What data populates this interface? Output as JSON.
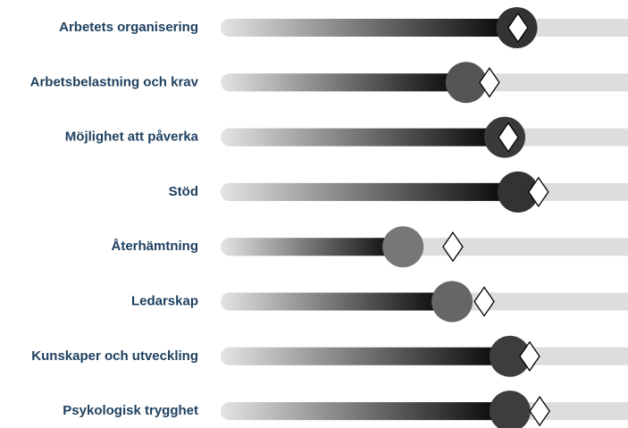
{
  "chart_data": {
    "type": "slider",
    "categories": [
      "Arbetets organisering",
      "Arbetsbelastning och krav",
      "Möjlighet att påverka",
      "Stöd",
      "Återhämtning",
      "Ledarskap",
      "Kunskaper och utveckling",
      "Psykologisk trygghet"
    ],
    "values": [
      73,
      60.4,
      70,
      73.3,
      44.7,
      56.9,
      71.3,
      71.3
    ],
    "reference_values": [
      73.3,
      66.2,
      70.9,
      78.4,
      57.1,
      64.9,
      76.2,
      78.7
    ],
    "marker_colors": [
      "#333333",
      "#555555",
      "#3a3a3a",
      "#333333",
      "#777777",
      "#666666",
      "#3d3d3d",
      "#3d3d3d"
    ],
    "track_color": "#dddddd",
    "xlim": [
      0,
      100
    ]
  }
}
